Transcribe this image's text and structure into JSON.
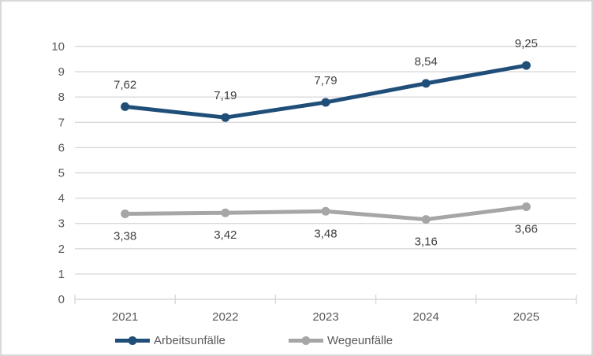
{
  "chart_data": {
    "type": "line",
    "title": "",
    "categories": [
      "2021",
      "2022",
      "2023",
      "2024",
      "2025"
    ],
    "series": [
      {
        "name": "Arbeitsunfälle",
        "values": [
          7.62,
          7.19,
          7.79,
          8.54,
          9.25
        ],
        "point_labels": [
          "7,62",
          "7,19",
          "7,79",
          "8,54",
          "9,25"
        ],
        "color": "#1F4E79",
        "marker": "circle",
        "label_position": "above"
      },
      {
        "name": "Wegeunfälle",
        "values": [
          3.38,
          3.42,
          3.48,
          3.16,
          3.66
        ],
        "point_labels": [
          "3,38",
          "3,42",
          "3,48",
          "3,16",
          "3,66"
        ],
        "color": "#A6A6A6",
        "marker": "circle",
        "label_position": "below"
      }
    ],
    "xlabel": "",
    "ylabel": "",
    "ylim": [
      0,
      10
    ],
    "ytick_step": 1,
    "ytick_labels": [
      "0",
      "1",
      "2",
      "3",
      "4",
      "5",
      "6",
      "7",
      "8",
      "9",
      "10"
    ],
    "grid": true,
    "legend_position": "bottom"
  },
  "colors": {
    "grid": "#D9D9D9",
    "axis_line": "#D9D9D9",
    "axis_text": "#595959",
    "data_label_text": "#404040",
    "frame_border": "#D9D9D9",
    "background": "#FFFFFF"
  }
}
